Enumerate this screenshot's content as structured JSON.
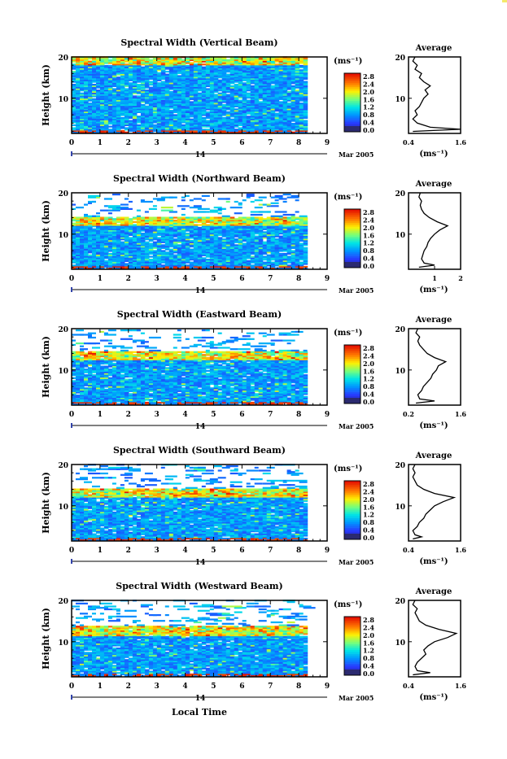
{
  "figure": {
    "bottom_xlabel": "Local Time",
    "corner_color": "#f4e96a"
  },
  "shared": {
    "ylabel": "Height (km)",
    "unit_label": "(ms⁻¹)",
    "date_label": "Mar 2005",
    "day_label": "14",
    "avg_title": "Average",
    "x_ticks": [
      "0",
      "1",
      "2",
      "3",
      "4",
      "5",
      "6",
      "7",
      "8",
      "9"
    ],
    "y_ticks": [
      "10",
      "20"
    ],
    "colorbar_ticks": [
      "0.0",
      "0.4",
      "0.8",
      "1.2",
      "1.6",
      "2.0",
      "2.4",
      "2.8"
    ]
  },
  "chart_data": [
    {
      "type": "heatmap",
      "title": "Spectral Width (Vertical Beam)",
      "xlabel": "",
      "ylabel": "Height (km)",
      "xlim": [
        0,
        9
      ],
      "ylim": [
        1.5,
        20
      ],
      "data_xmax": 8.3,
      "colorbar": {
        "label": "(ms⁻¹)",
        "range": [
          0.0,
          2.8
        ],
        "ticks": [
          "0.0",
          "0.4",
          "0.8",
          "1.2",
          "1.6",
          "2.0",
          "2.4",
          "2.8"
        ]
      },
      "avg_profile": {
        "title": "Average",
        "xlabel": "(ms⁻¹)",
        "xlim": [
          0.4,
          1.6
        ],
        "xticks": [
          "0.4",
          "1.6"
        ],
        "ylim": [
          1.5,
          20
        ],
        "points": [
          [
            0.5,
            2
          ],
          [
            1.6,
            2.5
          ],
          [
            0.9,
            3
          ],
          [
            0.6,
            4
          ],
          [
            0.5,
            5
          ],
          [
            0.6,
            6
          ],
          [
            0.55,
            7
          ],
          [
            0.65,
            8
          ],
          [
            0.7,
            9
          ],
          [
            0.75,
            10
          ],
          [
            0.85,
            11
          ],
          [
            0.78,
            12
          ],
          [
            0.9,
            13
          ],
          [
            0.75,
            14
          ],
          [
            0.65,
            15
          ],
          [
            0.7,
            16
          ],
          [
            0.55,
            17
          ],
          [
            0.6,
            18
          ],
          [
            0.5,
            19
          ],
          [
            0.55,
            20
          ]
        ]
      }
    },
    {
      "type": "heatmap",
      "title": "Spectral Width (Northward Beam)",
      "xlabel": "",
      "ylabel": "Height (km)",
      "xlim": [
        0,
        9
      ],
      "ylim": [
        1.5,
        20
      ],
      "data_xmax": 8.3,
      "colorbar": {
        "label": "(ms⁻¹)",
        "range": [
          0.0,
          2.8
        ],
        "ticks": [
          "0.0",
          "0.4",
          "0.8",
          "1.2",
          "1.6",
          "2.0",
          "2.4",
          "2.8"
        ]
      },
      "avg_profile": {
        "title": "Average",
        "xlabel": "(ms⁻¹)",
        "xlim": [
          0,
          2
        ],
        "xticks": [
          "1",
          "2"
        ],
        "ylim": [
          1.5,
          20
        ],
        "points": [
          [
            0.4,
            2
          ],
          [
            1.0,
            2.5
          ],
          [
            0.6,
            3
          ],
          [
            0.5,
            4
          ],
          [
            0.55,
            5
          ],
          [
            0.6,
            6
          ],
          [
            0.7,
            7
          ],
          [
            0.75,
            8
          ],
          [
            0.85,
            9
          ],
          [
            1.0,
            10
          ],
          [
            1.2,
            11
          ],
          [
            1.5,
            12
          ],
          [
            1.1,
            13
          ],
          [
            0.8,
            14
          ],
          [
            0.6,
            15
          ],
          [
            0.5,
            16
          ],
          [
            0.45,
            17
          ],
          [
            0.5,
            18
          ],
          [
            0.4,
            19
          ],
          [
            0.45,
            20
          ]
        ]
      }
    },
    {
      "type": "heatmap",
      "title": "Spectral Width (Eastward Beam)",
      "xlabel": "",
      "ylabel": "Height (km)",
      "xlim": [
        0,
        9
      ],
      "ylim": [
        1.5,
        20
      ],
      "data_xmax": 8.3,
      "colorbar": {
        "label": "(ms⁻¹)",
        "range": [
          0.0,
          2.8
        ],
        "ticks": [
          "0.0",
          "0.4",
          "0.8",
          "1.2",
          "1.6",
          "2.0",
          "2.4",
          "2.8"
        ]
      },
      "avg_profile": {
        "title": "Average",
        "xlabel": "(ms⁻¹)",
        "xlim": [
          0.2,
          1.6
        ],
        "xticks": [
          "0.2",
          "1.6"
        ],
        "ylim": [
          1.5,
          20
        ],
        "points": [
          [
            0.4,
            2
          ],
          [
            0.9,
            2.5
          ],
          [
            0.5,
            3
          ],
          [
            0.45,
            4
          ],
          [
            0.55,
            5
          ],
          [
            0.6,
            6
          ],
          [
            0.7,
            7
          ],
          [
            0.8,
            8
          ],
          [
            0.85,
            9
          ],
          [
            0.95,
            10
          ],
          [
            1.0,
            11
          ],
          [
            1.2,
            12
          ],
          [
            0.9,
            13
          ],
          [
            0.7,
            14
          ],
          [
            0.6,
            15
          ],
          [
            0.5,
            16
          ],
          [
            0.45,
            17
          ],
          [
            0.5,
            18
          ],
          [
            0.4,
            19
          ],
          [
            0.45,
            20
          ]
        ]
      }
    },
    {
      "type": "heatmap",
      "title": "Spectral Width (Southward Beam)",
      "xlabel": "",
      "ylabel": "Height (km)",
      "xlim": [
        0,
        9
      ],
      "ylim": [
        1.5,
        20
      ],
      "data_xmax": 8.3,
      "colorbar": {
        "label": "(ms⁻¹)",
        "range": [
          0.0,
          2.8
        ],
        "ticks": [
          "0.0",
          "0.4",
          "0.8",
          "1.2",
          "1.6",
          "2.0",
          "2.4",
          "2.8"
        ]
      },
      "avg_profile": {
        "title": "Average",
        "xlabel": "(ms⁻¹)",
        "xlim": [
          0.4,
          1.6
        ],
        "xticks": [
          "0.4",
          "1.6"
        ],
        "ylim": [
          1.5,
          20
        ],
        "points": [
          [
            0.5,
            2
          ],
          [
            0.7,
            2.5
          ],
          [
            0.55,
            3
          ],
          [
            0.5,
            4
          ],
          [
            0.6,
            5
          ],
          [
            0.65,
            6
          ],
          [
            0.75,
            7
          ],
          [
            0.8,
            8
          ],
          [
            0.9,
            9
          ],
          [
            1.0,
            10
          ],
          [
            1.2,
            11
          ],
          [
            1.45,
            12
          ],
          [
            1.0,
            13
          ],
          [
            0.75,
            14
          ],
          [
            0.6,
            15
          ],
          [
            0.55,
            16
          ],
          [
            0.5,
            17
          ],
          [
            0.55,
            18
          ],
          [
            0.5,
            19
          ],
          [
            0.55,
            20
          ]
        ]
      }
    },
    {
      "type": "heatmap",
      "title": "Spectral Width (Westward Beam)",
      "xlabel": "Local Time",
      "ylabel": "Height (km)",
      "xlim": [
        0,
        9
      ],
      "ylim": [
        1.5,
        20
      ],
      "data_xmax": 8.3,
      "colorbar": {
        "label": "(ms⁻¹)",
        "range": [
          0.0,
          2.8
        ],
        "ticks": [
          "0.0",
          "0.4",
          "0.8",
          "1.2",
          "1.6",
          "2.0",
          "2.4",
          "2.8"
        ]
      },
      "avg_profile": {
        "title": "Average",
        "xlabel": "(ms⁻¹)",
        "xlim": [
          0.4,
          1.6
        ],
        "xticks": [
          "0.4",
          "1.6"
        ],
        "ylim": [
          1.5,
          20
        ],
        "points": [
          [
            0.5,
            2
          ],
          [
            0.9,
            2.5
          ],
          [
            0.6,
            3
          ],
          [
            0.55,
            4
          ],
          [
            0.6,
            5
          ],
          [
            0.7,
            6
          ],
          [
            0.8,
            7
          ],
          [
            0.75,
            8
          ],
          [
            0.85,
            9
          ],
          [
            1.0,
            10
          ],
          [
            1.3,
            11
          ],
          [
            1.5,
            12
          ],
          [
            1.1,
            13
          ],
          [
            0.8,
            14
          ],
          [
            0.65,
            15
          ],
          [
            0.6,
            16
          ],
          [
            0.55,
            17
          ],
          [
            0.6,
            18
          ],
          [
            0.5,
            19
          ],
          [
            0.55,
            20
          ]
        ]
      }
    }
  ]
}
